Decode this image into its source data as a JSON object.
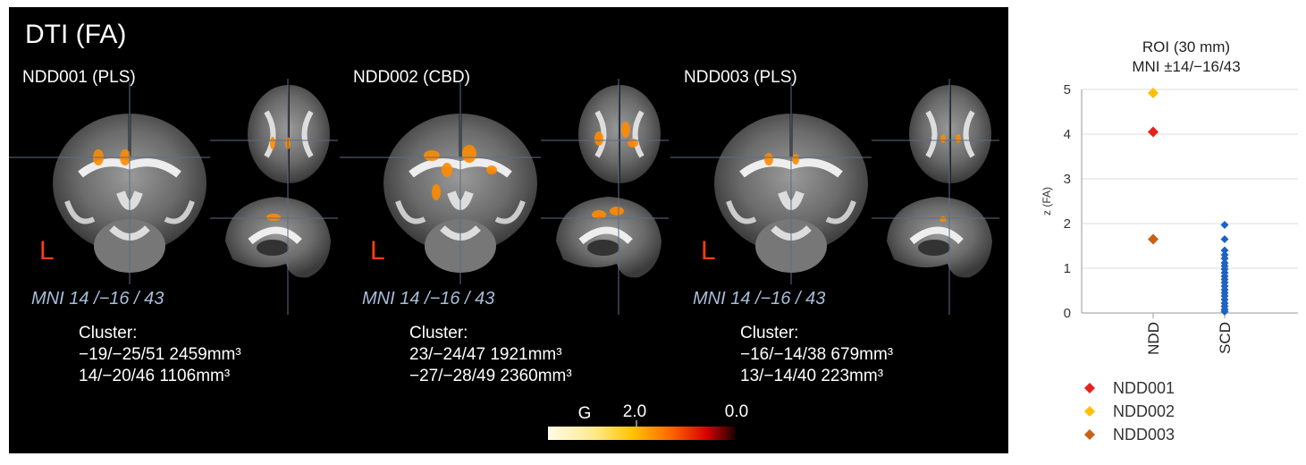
{
  "figure": {
    "title": "DTI (FA)",
    "panels": [
      {
        "subject": "NDD001 (PLS)",
        "side": "L",
        "mni": "MNI 14 /−16 / 43",
        "cluster_heading": "Cluster:",
        "clusters": [
          "−19/−25/51 2459mm³",
          "14/−20/46 1106mm³"
        ]
      },
      {
        "subject": "NDD002 (CBD)",
        "side": "L",
        "mni": "MNI 14 /−16 / 43",
        "cluster_heading": "Cluster:",
        "clusters": [
          "23/−24/47 1921mm³",
          "−27/−28/49 2360mm³"
        ]
      },
      {
        "subject": "NDD003 (PLS)",
        "side": "L",
        "mni": "MNI 14 /−16 / 43",
        "cluster_heading": "Cluster:",
        "clusters": [
          "−16/−14/38 679mm³",
          "13/−14/40 223mm³"
        ]
      }
    ],
    "colorbar": {
      "labels": [
        "G",
        "2.0",
        "0.0"
      ]
    }
  },
  "chart_data": {
    "type": "scatter",
    "title": "ROI (30 mm)",
    "subtitle": "MNI ±14/−16/43",
    "y_label": "z (FA)",
    "categories": [
      "NDD",
      "SCD"
    ],
    "ylim": [
      0,
      5
    ],
    "yticks": [
      0,
      1,
      2,
      3,
      4,
      5
    ],
    "grid": true,
    "series": [
      {
        "name": "NDD001",
        "color": "#e8211d",
        "category": "NDD",
        "values": [
          4.05
        ]
      },
      {
        "name": "NDD002",
        "color": "#ffc000",
        "category": "NDD",
        "values": [
          4.92
        ]
      },
      {
        "name": "NDD003",
        "color": "#cc6016",
        "category": "NDD",
        "values": [
          1.65
        ]
      },
      {
        "color": "#1f62c4",
        "category": "SCD",
        "values": [
          1.97,
          1.65,
          1.4,
          1.3,
          1.22,
          1.12,
          1.05,
          0.98,
          0.9,
          0.82,
          0.75,
          0.68,
          0.6,
          0.52,
          0.45,
          0.38,
          0.3,
          0.22,
          0.15,
          0.08,
          0.03
        ]
      }
    ],
    "legend": "bottom"
  }
}
